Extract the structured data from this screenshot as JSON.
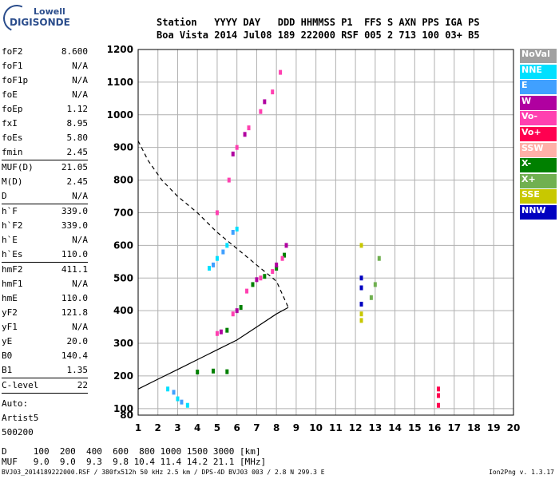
{
  "logo": {
    "line1": "Lowell",
    "line2": "DIGISONDE"
  },
  "header": {
    "labels": "Station   YYYY DAY   DDD HHMMSS P1  FFS S AXN PPS IGA PS",
    "values": "Boa Vista 2014 Jul08 189 222000 RSF 005 2 713 100 03+ B5"
  },
  "params": {
    "group1": [
      {
        "k": "foF2",
        "v": "8.600"
      },
      {
        "k": "foF1",
        "v": "N/A"
      },
      {
        "k": "foF1p",
        "v": "N/A"
      },
      {
        "k": "foE",
        "v": "N/A"
      },
      {
        "k": "foEp",
        "v": "1.12"
      },
      {
        "k": "fxI",
        "v": "8.95"
      },
      {
        "k": "foEs",
        "v": "5.80"
      },
      {
        "k": "fmin",
        "v": "2.45"
      }
    ],
    "group2": [
      {
        "k": "MUF(D)",
        "v": "21.05"
      },
      {
        "k": "M(D)",
        "v": "2.45"
      },
      {
        "k": "D",
        "v": "N/A"
      }
    ],
    "group3": [
      {
        "k": "h`F",
        "v": "339.0"
      },
      {
        "k": "h`F2",
        "v": "339.0"
      },
      {
        "k": "h`E",
        "v": "N/A"
      },
      {
        "k": "h`Es",
        "v": "110.0"
      }
    ],
    "group4": [
      {
        "k": "hmF2",
        "v": "411.1"
      },
      {
        "k": "hmF1",
        "v": "N/A"
      },
      {
        "k": "hmE",
        "v": "110.0"
      },
      {
        "k": "yF2",
        "v": "121.8"
      },
      {
        "k": "yF1",
        "v": "N/A"
      },
      {
        "k": "yE",
        "v": "20.0"
      },
      {
        "k": "B0",
        "v": "140.4"
      },
      {
        "k": "B1",
        "v": "1.35"
      }
    ],
    "group5": [
      {
        "k": "C-level",
        "v": "22"
      }
    ],
    "auto": [
      "Auto:",
      "Artist5",
      "500200"
    ]
  },
  "legend": [
    {
      "label": "NoVal",
      "color": "#a0a0a0"
    },
    {
      "label": "NNE",
      "color": "#00e0ff"
    },
    {
      "label": "E",
      "color": "#40a0ff"
    },
    {
      "label": "W",
      "color": "#b000a0"
    },
    {
      "label": "Vo-",
      "color": "#ff40b0"
    },
    {
      "label": "Vo+",
      "color": "#ff0050"
    },
    {
      "label": "SSW",
      "color": "#ffb0a8"
    },
    {
      "label": "X-",
      "color": "#008000"
    },
    {
      "label": "X+",
      "color": "#70b050"
    },
    {
      "label": "SSE",
      "color": "#c8c800"
    },
    {
      "label": "NNW",
      "color": "#0000c0"
    }
  ],
  "mufd": {
    "line1": "D     100  200  400  600  800 1000 1500 3000 [km]",
    "line2": "MUF   9.0  9.0  9.3  9.8 10.4 11.4 14.2 21.1 [MHz]"
  },
  "footer": {
    "left": "BVJ03_2014189222000.RSF / 380fx512h 50 kHz 2.5 km / DPS-4D BVJ03 003 / 2.8 N 299.3 E",
    "right": "Ion2Png v. 1.3.17"
  },
  "chart_data": {
    "type": "scatter",
    "xlim": [
      1,
      20
    ],
    "ylim": [
      80,
      1200
    ],
    "xticks": [
      1,
      2,
      3,
      4,
      5,
      6,
      7,
      8,
      9,
      10,
      11,
      12,
      13,
      14,
      15,
      16,
      17,
      18,
      19,
      20
    ],
    "yticks": [
      80,
      100,
      200,
      300,
      400,
      500,
      600,
      700,
      800,
      900,
      1000,
      1100,
      1200
    ],
    "grid": true,
    "series": [
      {
        "name": "X-",
        "color": "#008000",
        "points": [
          [
            5.5,
            340
          ],
          [
            6.2,
            410
          ],
          [
            6.8,
            480
          ],
          [
            7.4,
            505
          ],
          [
            8.0,
            530
          ],
          [
            8.4,
            570
          ],
          [
            4.0,
            212
          ],
          [
            4.8,
            215
          ],
          [
            5.5,
            213
          ]
        ]
      },
      {
        "name": "Vo-",
        "color": "#ff40b0",
        "points": [
          [
            5.0,
            330
          ],
          [
            5.8,
            390
          ],
          [
            6.5,
            460
          ],
          [
            7.2,
            500
          ],
          [
            7.8,
            520
          ],
          [
            8.3,
            560
          ],
          [
            5.0,
            700
          ],
          [
            5.6,
            800
          ],
          [
            6.0,
            900
          ],
          [
            6.6,
            960
          ],
          [
            7.2,
            1010
          ],
          [
            7.8,
            1070
          ],
          [
            8.2,
            1130
          ]
        ]
      },
      {
        "name": "W",
        "color": "#b000a0",
        "points": [
          [
            5.2,
            335
          ],
          [
            6.0,
            400
          ],
          [
            7.0,
            495
          ],
          [
            8.0,
            540
          ],
          [
            8.5,
            600
          ],
          [
            5.8,
            880
          ],
          [
            6.4,
            940
          ],
          [
            7.4,
            1040
          ]
        ]
      },
      {
        "name": "NNE",
        "color": "#00e0ff",
        "points": [
          [
            4.6,
            530
          ],
          [
            5.0,
            560
          ],
          [
            5.5,
            600
          ],
          [
            6.0,
            650
          ],
          [
            2.5,
            160
          ],
          [
            3.0,
            130
          ],
          [
            3.5,
            110
          ]
        ]
      },
      {
        "name": "E",
        "color": "#40a0ff",
        "points": [
          [
            4.8,
            540
          ],
          [
            5.3,
            580
          ],
          [
            5.8,
            640
          ],
          [
            2.8,
            150
          ],
          [
            3.2,
            120
          ]
        ]
      },
      {
        "name": "NNW",
        "color": "#0000c0",
        "points": [
          [
            12.3,
            420
          ],
          [
            12.3,
            470
          ],
          [
            12.3,
            500
          ]
        ]
      },
      {
        "name": "SSE",
        "color": "#c8c800",
        "points": [
          [
            12.3,
            370
          ],
          [
            12.3,
            390
          ],
          [
            12.3,
            600
          ]
        ]
      },
      {
        "name": "X+",
        "color": "#70b050",
        "points": [
          [
            13.0,
            480
          ],
          [
            13.2,
            560
          ],
          [
            12.8,
            440
          ]
        ]
      },
      {
        "name": "Vo+",
        "color": "#ff0050",
        "points": [
          [
            16.2,
            160
          ],
          [
            16.2,
            140
          ],
          [
            16.2,
            110
          ]
        ]
      }
    ],
    "profile_solid": [
      [
        1,
        160
      ],
      [
        2,
        190
      ],
      [
        3,
        220
      ],
      [
        4,
        250
      ],
      [
        5,
        280
      ],
      [
        6,
        310
      ],
      [
        7,
        350
      ],
      [
        8,
        390
      ],
      [
        8.6,
        410
      ]
    ],
    "profile_dashed": [
      [
        1,
        920
      ],
      [
        1.5,
        860
      ],
      [
        2.2,
        800
      ],
      [
        3,
        750
      ],
      [
        4,
        700
      ],
      [
        5,
        640
      ],
      [
        6,
        590
      ],
      [
        7,
        540
      ],
      [
        8,
        490
      ],
      [
        8.6,
        410
      ]
    ]
  }
}
